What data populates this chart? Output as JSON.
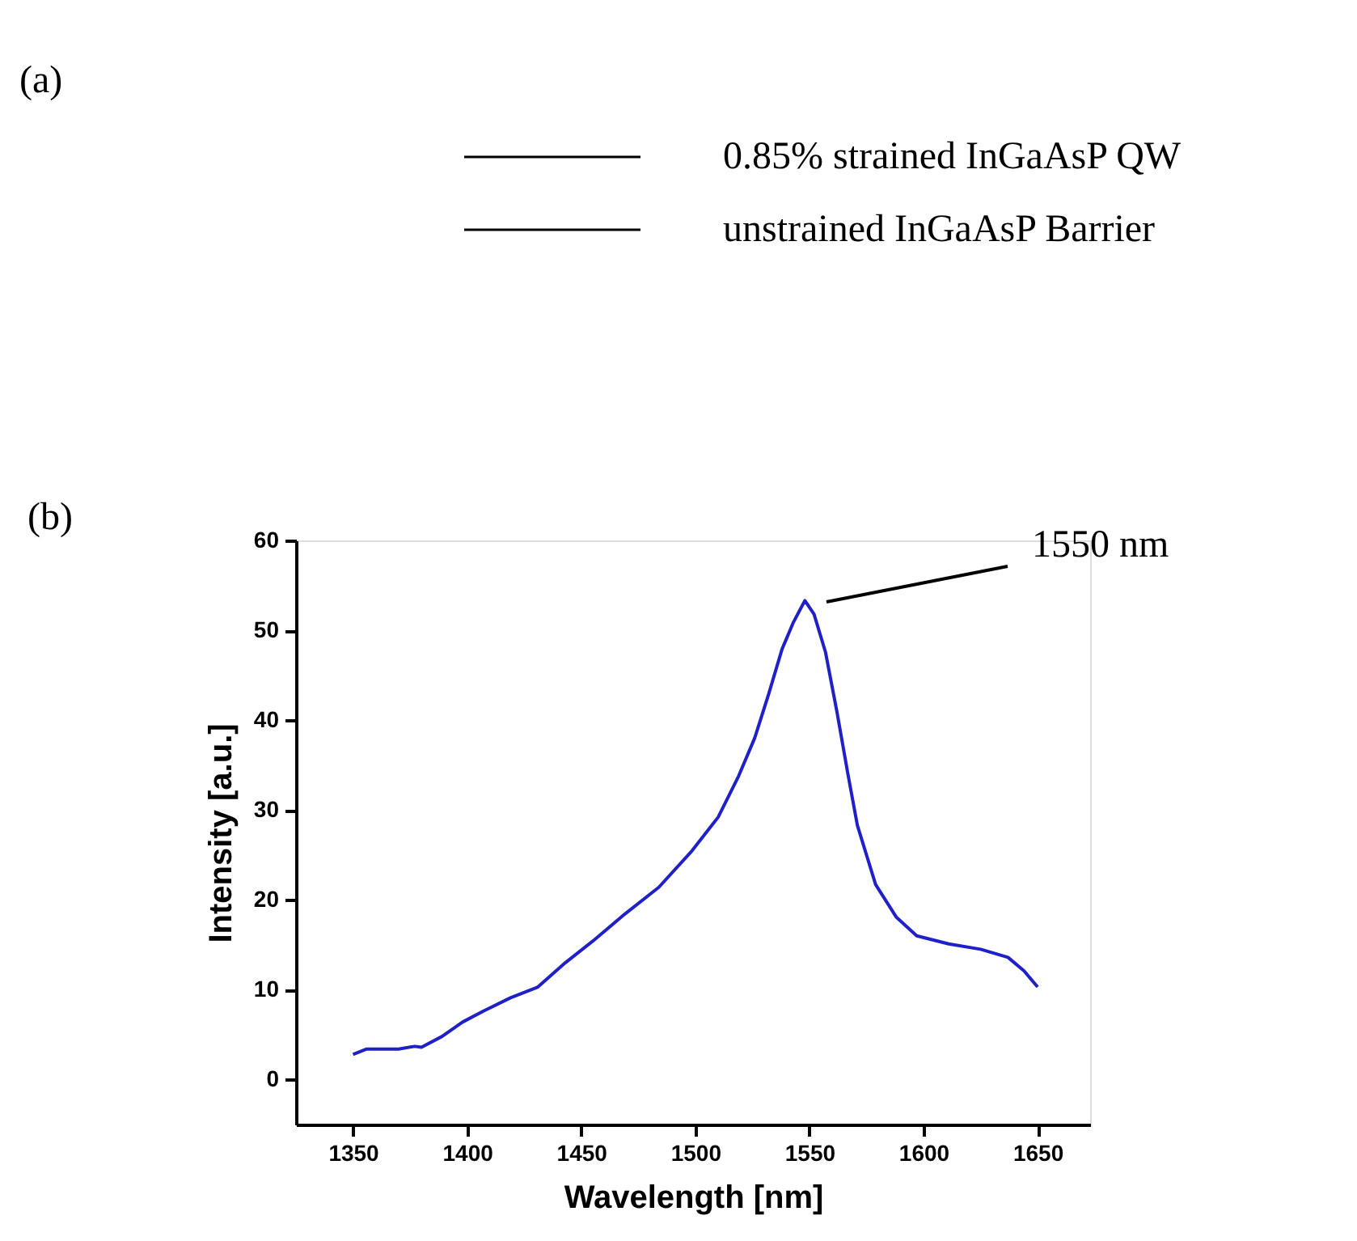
{
  "chart_data": {
    "type": "line",
    "xlabel": "Wavelength [nm]",
    "ylabel": "Intensity [a.u.]",
    "xlim": [
      1325,
      1673
    ],
    "ylim": [
      -5,
      60
    ],
    "xticks": [
      1350,
      1400,
      1450,
      1500,
      1550,
      1600,
      1650
    ],
    "yticks": [
      0,
      10,
      20,
      30,
      40,
      50,
      60
    ],
    "grid": false,
    "marker": "none",
    "line_style": "solid",
    "annotations": [
      "(a)",
      "0.85% strained InGaAsP QW",
      "unstrained InGaAsP Barrier",
      "(b)",
      "1550 nm"
    ],
    "series": [
      {
        "color": "#2020c8",
        "x": [
          1350,
          1356,
          1370,
          1377,
          1380,
          1389,
          1398,
          1407,
          1419,
          1431,
          1443,
          1455,
          1469,
          1484,
          1498,
          1510,
          1519,
          1526,
          1532,
          1538,
          1543,
          1548,
          1552,
          1557,
          1562,
          1567,
          1571,
          1579,
          1588,
          1597,
          1611,
          1625,
          1637,
          1644,
          1650
        ],
        "values": [
          2.8,
          3.4,
          3.4,
          3.7,
          3.6,
          4.8,
          6.4,
          7.6,
          9.1,
          10.3,
          13.0,
          15.4,
          18.4,
          21.4,
          25.3,
          29.2,
          33.8,
          38.0,
          42.8,
          47.9,
          50.9,
          53.3,
          51.8,
          47.6,
          41.0,
          33.8,
          28.3,
          21.7,
          18.1,
          16.0,
          15.1,
          14.5,
          13.6,
          12.1,
          10.3
        ]
      }
    ]
  }
}
